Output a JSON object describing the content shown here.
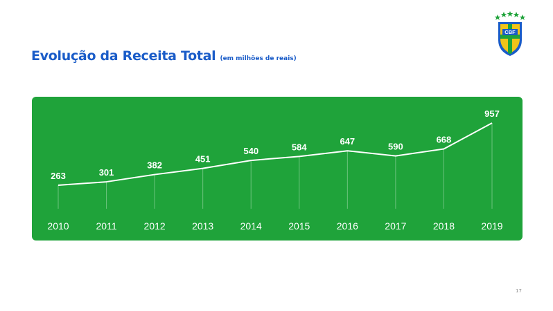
{
  "slide": {
    "title": "Evolução da Receita Total",
    "subtitle": "(em milhões de reais)",
    "page_number": "17"
  },
  "logo": {
    "text": "CBF",
    "icon": "cbf-crest-icon",
    "colors": {
      "shield": "#1a5cc8",
      "star": "#f2c418",
      "stars": "#1fa33a"
    }
  },
  "colors": {
    "panel": "#1fa33a",
    "title": "#1a5cc8",
    "line": "#ffffff"
  },
  "chart_data": {
    "type": "line",
    "title": "Evolução da Receita Total",
    "subtitle": "(em milhões de reais)",
    "categories": [
      "2010",
      "2011",
      "2012",
      "2013",
      "2014",
      "2015",
      "2016",
      "2017",
      "2018",
      "2019"
    ],
    "values": [
      263,
      301,
      382,
      451,
      540,
      584,
      647,
      590,
      668,
      957
    ],
    "data_labels": true,
    "grid": false,
    "legend": "none"
  }
}
